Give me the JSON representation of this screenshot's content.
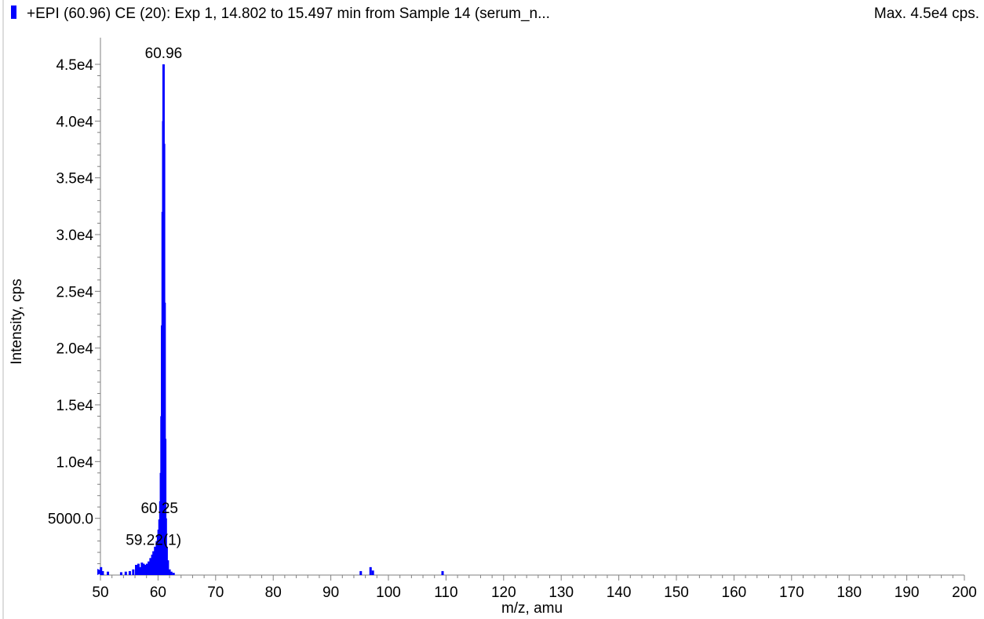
{
  "header": {
    "title": "+EPI (60.96) CE (20): Exp 1, 14.802 to 15.497 min from Sample 14 (serum_n...",
    "max_text": "Max. 4.5e4 cps.",
    "series_color": "#0000ff"
  },
  "chart_data": {
    "type": "bar",
    "title": "+EPI (60.96) CE (20): Exp 1, 14.802 to 15.497 min from Sample 14 (serum_n...",
    "xlabel": "m/z, amu",
    "ylabel": "Intensity, cps",
    "xlim": [
      50,
      200
    ],
    "ylim": [
      0,
      45500
    ],
    "x_ticks": [
      50,
      60,
      70,
      80,
      90,
      100,
      110,
      120,
      130,
      140,
      150,
      160,
      170,
      180,
      190,
      200
    ],
    "x_tick_labels": [
      "50",
      "60",
      "70",
      "80",
      "90",
      "100",
      "110",
      "120",
      "130",
      "140",
      "150",
      "160",
      "170",
      "180",
      "190",
      "200"
    ],
    "y_ticks": [
      5000,
      10000,
      15000,
      20000,
      25000,
      30000,
      35000,
      40000,
      45000
    ],
    "y_tick_labels": [
      "5000.0",
      "1.0e4",
      "1.5e4",
      "2.0e4",
      "2.5e4",
      "3.0e4",
      "3.5e4",
      "4.0e4",
      "4.5e4"
    ],
    "grid": false,
    "color": "#0000ff",
    "x": [
      50.1,
      50.4,
      51.3,
      53.6,
      54.4,
      55.1,
      55.7,
      56.2,
      56.6,
      56.9,
      57.2,
      57.5,
      57.8,
      58.1,
      58.4,
      58.7,
      59.0,
      59.22,
      59.5,
      59.8,
      60.0,
      60.1,
      60.25,
      60.4,
      60.5,
      60.6,
      60.7,
      60.8,
      60.9,
      60.96,
      61.05,
      61.15,
      61.25,
      61.35,
      61.5,
      61.7,
      62.0,
      62.3,
      62.7,
      95.2,
      96.9,
      97.3,
      109.4
    ],
    "values": [
      700,
      350,
      300,
      250,
      300,
      350,
      500,
      900,
      1000,
      700,
      1100,
      1000,
      900,
      1000,
      1200,
      1500,
      1800,
      2100,
      2500,
      3000,
      3500,
      4000,
      4900,
      6500,
      9000,
      14000,
      22000,
      32000,
      40000,
      45000,
      38000,
      24000,
      12000,
      5000,
      2500,
      1300,
      500,
      300,
      200,
      350,
      700,
      400,
      350
    ],
    "annotations": [
      {
        "x": 60.96,
        "y": 45000,
        "text": "60.96"
      },
      {
        "x": 60.25,
        "y": 4900,
        "text": "60.25"
      },
      {
        "x": 59.22,
        "y": 2100,
        "text": "59.22(1)"
      }
    ]
  }
}
